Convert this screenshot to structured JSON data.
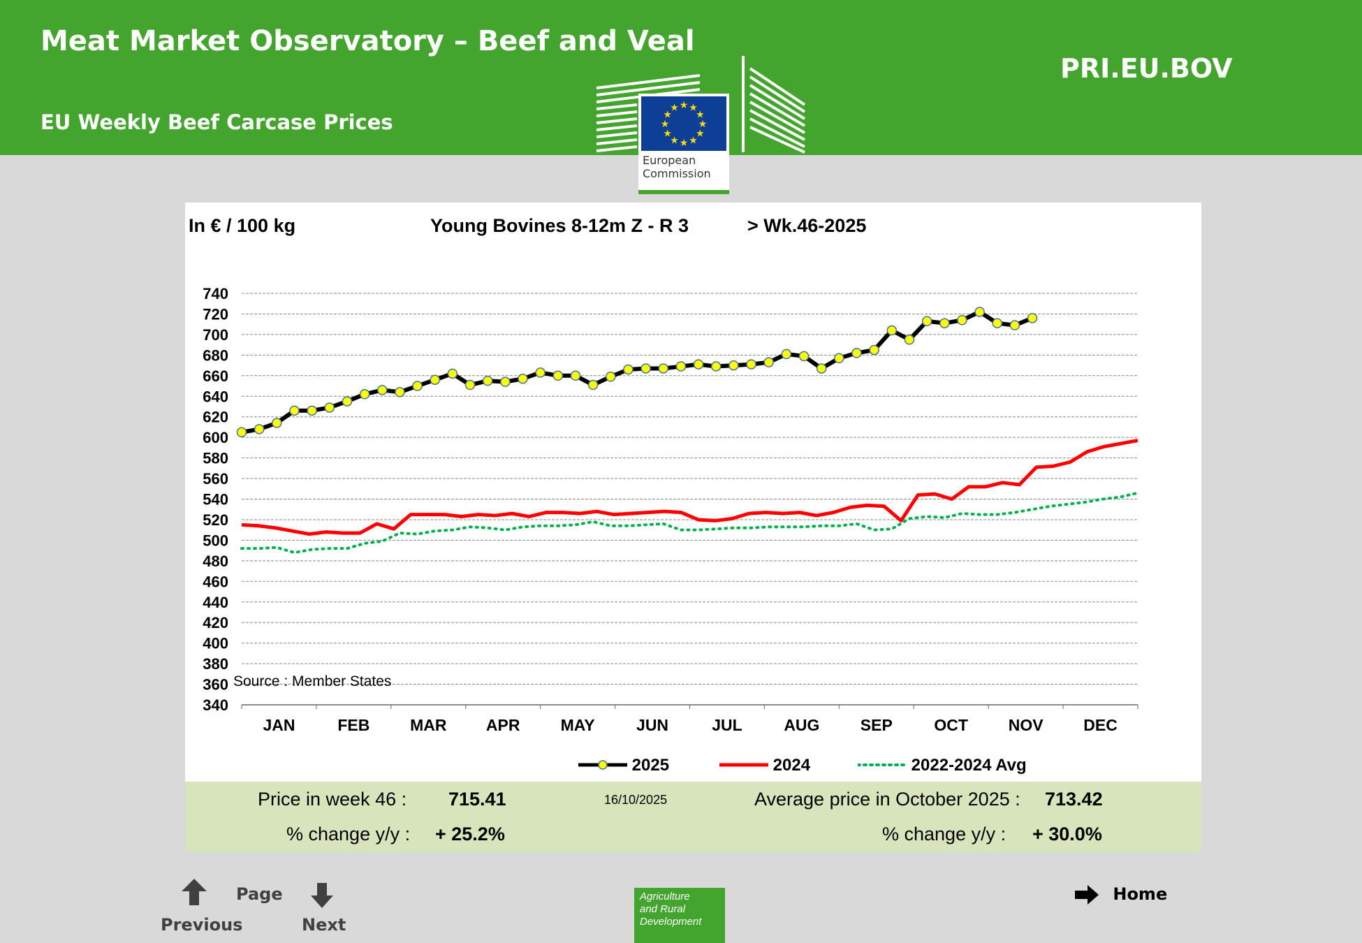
{
  "header": {
    "title": "Meat Market Observatory – Beef and Veal",
    "subtitle": "EU Weekly Beef Carcase Prices",
    "code": "PRI.EU.BOV",
    "logo_text_1": "European",
    "logo_text_2": "Commission"
  },
  "chart_header": {
    "unit": "In € / 100 kg",
    "series_title": "Young Bovines 8-12m Z - R 3",
    "week": "> Wk.46-2025"
  },
  "source": "Source : Member  States",
  "chart_data": {
    "type": "line",
    "title": "Young Bovines 8-12m Z - R 3",
    "ylabel": "In € / 100 kg",
    "ylim": [
      340,
      740
    ],
    "yticks": [
      340,
      360,
      380,
      400,
      420,
      440,
      460,
      480,
      500,
      520,
      540,
      560,
      580,
      600,
      620,
      640,
      660,
      680,
      700,
      720,
      740
    ],
    "grid": true,
    "x_unit": "week",
    "months": [
      "JAN",
      "FEB",
      "MAR",
      "APR",
      "MAY",
      "JUN",
      "JUL",
      "AUG",
      "SEP",
      "OCT",
      "NOV",
      "DEC"
    ],
    "legend_position": "bottom",
    "series": [
      {
        "name": "2025",
        "color": "#000000",
        "marker": "#ffff00",
        "values": [
          605,
          608,
          614,
          626,
          626,
          629,
          635,
          642,
          646,
          644,
          650,
          656,
          662,
          651,
          655,
          654,
          657,
          663,
          660,
          660,
          651,
          659,
          666,
          667,
          667,
          669,
          671,
          669,
          670,
          671,
          673,
          681,
          679,
          667,
          677,
          682,
          685,
          704,
          695,
          713,
          711,
          714,
          722,
          711,
          709,
          716
        ]
      },
      {
        "name": "2024",
        "color": "#ff0000",
        "values": [
          515,
          514,
          512,
          509,
          506,
          508,
          507,
          507,
          516,
          511,
          525,
          525,
          525,
          523,
          525,
          524,
          526,
          523,
          527,
          527,
          526,
          528,
          525,
          526,
          527,
          528,
          527,
          520,
          519,
          521,
          526,
          527,
          526,
          527,
          524,
          527,
          532,
          534,
          533,
          519,
          544,
          545,
          540,
          552,
          552,
          556,
          554,
          571,
          572,
          576,
          586,
          591,
          594,
          597
        ]
      },
      {
        "name": "2022-2024 Avg",
        "color": "#00b050",
        "values": [
          492,
          492,
          493,
          488,
          491,
          492,
          492,
          497,
          499,
          507,
          506,
          509,
          510,
          513,
          512,
          510,
          513,
          514,
          514,
          515,
          518,
          514,
          514,
          515,
          516,
          510,
          510,
          511,
          512,
          512,
          513,
          513,
          513,
          514,
          514,
          516,
          510,
          511,
          521,
          523,
          522,
          526,
          525,
          525,
          527,
          530,
          533,
          535,
          537,
          540,
          542,
          546
        ]
      }
    ]
  },
  "stats": {
    "week_label": "Price in week 46 :",
    "week_price": "715.41",
    "date": "16/10/2025",
    "month_label": "Average price in October 2025 :",
    "month_price": "713.42",
    "yy_label_1": "% change y/y :",
    "yy_value_1": "+ 25.2%",
    "yy_label_2": "% change y/y :",
    "yy_value_2": "+ 30.0%"
  },
  "nav": {
    "page": "Page",
    "previous": "Previous",
    "next": "Next",
    "home": "Home",
    "agri_1": "Agriculture",
    "agri_2": "and Rural",
    "agri_3": "Development"
  }
}
